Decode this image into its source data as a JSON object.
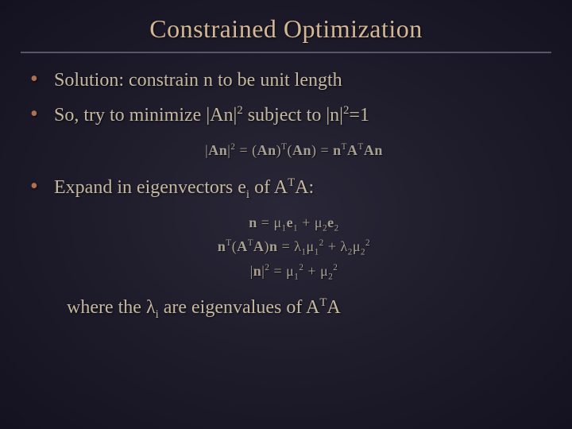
{
  "colors": {
    "background_center": "#2a2838",
    "background_mid": "#1e1c2a",
    "background_edge": "#141220",
    "title_color": "#d4b896",
    "rule_color": "#5a5568",
    "text_color": "#c6b8a0",
    "bullet_color": "#b07050",
    "math_color": "#a8a090"
  },
  "typography": {
    "title_font": "Georgia, Times New Roman, serif",
    "title_size_pt": 24,
    "body_size_pt": 18,
    "math_size_pt": 14
  },
  "title": "Constrained Optimization",
  "bullets": {
    "b1": "Solution: constrain n to be unit length",
    "b2_pre": "So, try to minimize |An|",
    "b2_mid": " subject to |n|",
    "b2_post": "=1",
    "b3_pre": "Expand in eigenvectors e",
    "b3_mid": " of A",
    "b3_post": "A:",
    "closing_pre": "where the ",
    "closing_lambda": "λ",
    "closing_mid": " are eigenvalues of A",
    "closing_post": "A"
  },
  "superscripts": {
    "two": "2",
    "T": "T"
  },
  "subscripts": {
    "i": "i",
    "one": "1",
    "two": "2"
  },
  "math": {
    "eq1_lhs": "|",
    "eq1_An": "An",
    "eq1_bar": "|",
    "eq1_eq": " = (",
    "eq1_paren_r": ")",
    "eq1_n": "n",
    "eq1_A": "A",
    "mu": "μ",
    "e": "e",
    "plus": " + ",
    "lambda": "λ"
  }
}
